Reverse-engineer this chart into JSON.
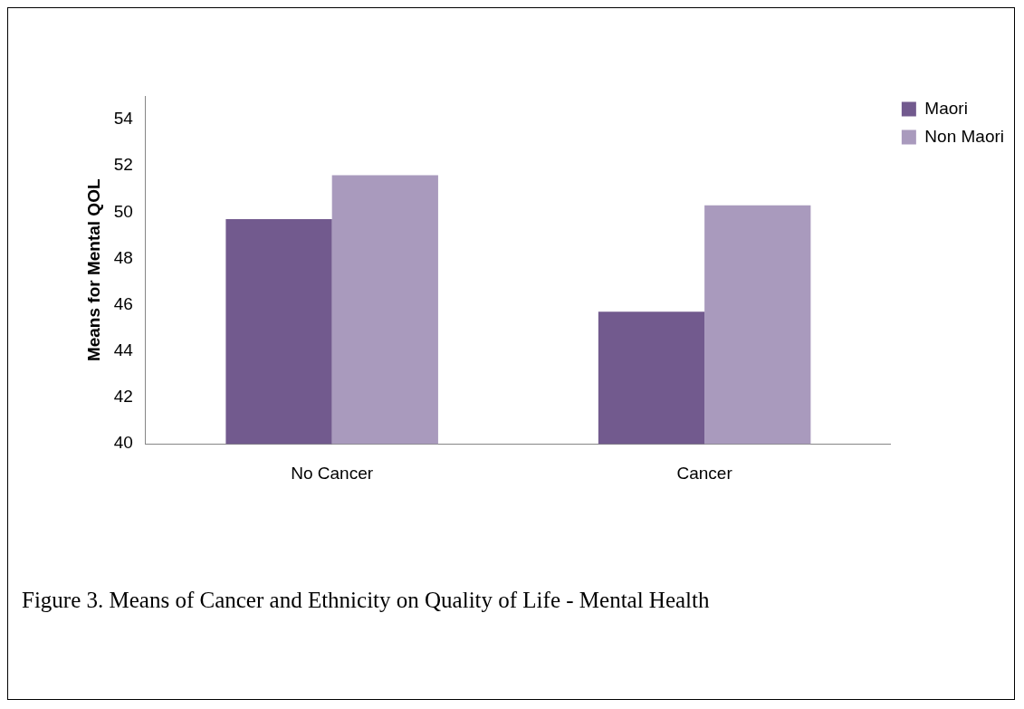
{
  "chart_data": {
    "type": "bar",
    "ylabel": "Means for Mental QOL",
    "categories": [
      "No Cancer",
      "Cancer"
    ],
    "series": [
      {
        "name": "Maori",
        "color": "#725a8e",
        "values": [
          49.7,
          45.7
        ]
      },
      {
        "name": "Non Maori",
        "color": "#a99abd",
        "values": [
          51.6,
          50.3
        ]
      }
    ],
    "ylim": [
      40,
      55
    ],
    "yticks": [
      40,
      42,
      44,
      46,
      48,
      50,
      52,
      54
    ],
    "grid": false,
    "legend": "top right",
    "annotations": [
      "Figure 3. Means of Cancer and Ethnicity on Quality of Life - Mental Health"
    ]
  }
}
